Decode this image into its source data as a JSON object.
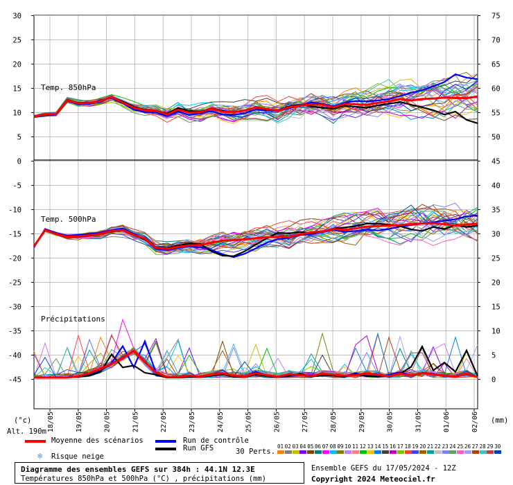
{
  "chart_data": {
    "type": "line",
    "x_dates": [
      "18/05",
      "19/05",
      "20/05",
      "21/05",
      "22/05",
      "23/05",
      "24/05",
      "25/05",
      "26/05",
      "27/05",
      "28/05",
      "29/05",
      "30/05",
      "31/05",
      "01/06",
      "02/06"
    ],
    "y_left_ticks": [
      "30",
      "25",
      "20",
      "15",
      "10",
      "5",
      "0",
      "-5",
      "-10",
      "-15",
      "-20",
      "-25",
      "-30",
      "-35",
      "-40",
      "-45"
    ],
    "y_right_upper_ticks": [
      "75",
      "70",
      "65",
      "60",
      "55",
      "50"
    ],
    "y_right_lower_ticks": [
      "45",
      "40",
      "35",
      "30",
      "25",
      "20",
      "15",
      "10",
      "5",
      "0"
    ],
    "left_unit": "(°c)",
    "right_unit": "(mm)",
    "altitude": "Alt. 190m",
    "panel_labels": {
      "t850": "Temp. 850hPa",
      "t500": "Temp. 500hPa",
      "precip": "Précipitations"
    },
    "series": [
      {
        "name": "Moyenne des scénarios",
        "color": "#ff0000",
        "t850": [
          9.2,
          9.6,
          9.7,
          12.6,
          11.9,
          12.0,
          12.4,
          13.2,
          12.1,
          11.0,
          10.5,
          10.4,
          9.6,
          10.6,
          10.0,
          10.1,
          10.8,
          10.2,
          10.1,
          10.4,
          11.1,
          10.7,
          10.4,
          11.1,
          11.4,
          11.7,
          11.6,
          11.1,
          11.8,
          11.7,
          11.6,
          12.0,
          12.3,
          12.8,
          12.5,
          12.8,
          12.9,
          13.1,
          13.0,
          13.0,
          13.3
        ],
        "t500": [
          -17.6,
          -14.2,
          -15.0,
          -15.6,
          -15.5,
          -15.3,
          -15.0,
          -14.4,
          -14.2,
          -15.2,
          -16.0,
          -17.9,
          -18.1,
          -17.7,
          -17.4,
          -17.3,
          -16.8,
          -16.4,
          -16.3,
          -16.1,
          -15.9,
          -15.7,
          -15.6,
          -15.7,
          -15.1,
          -14.7,
          -14.5,
          -14.0,
          -14.2,
          -13.9,
          -13.5,
          -13.4,
          -13.3,
          -13.2,
          -13.0,
          -12.9,
          -12.8,
          -13.0,
          -13.3,
          -13.1,
          -12.9
        ],
        "precip": [
          0,
          0,
          0,
          0,
          0.3,
          0.9,
          1.8,
          2.8,
          4.1,
          5.5,
          3.2,
          1.1,
          0.1,
          0.1,
          0.4,
          0.2,
          0.6,
          0.9,
          0.4,
          0.2,
          0.9,
          0.5,
          0.2,
          0.7,
          0.5,
          0.3,
          0.8,
          0.6,
          0.4,
          0.5,
          0.9,
          0.6,
          0.3,
          0.8,
          0.5,
          0.9,
          0.7,
          0.4,
          0.2,
          0.8,
          0.1
        ]
      },
      {
        "name": "Run de contrôle",
        "color": "#0000ff",
        "t850": [
          9.3,
          9.5,
          9.6,
          12.5,
          11.7,
          11.8,
          12.6,
          13.0,
          11.9,
          10.6,
          10.1,
          10.0,
          9.3,
          10.2,
          9.5,
          9.9,
          10.3,
          9.6,
          9.5,
          9.9,
          10.6,
          10.4,
          10.3,
          10.9,
          11.4,
          12.1,
          11.8,
          11.3,
          12.0,
          12.4,
          12.3,
          12.5,
          12.8,
          13.4,
          14.1,
          14.6,
          15.4,
          16.3,
          17.9,
          17.2,
          16.9
        ],
        "t500": [
          -17.8,
          -14.0,
          -14.8,
          -15.4,
          -15.2,
          -15.0,
          -14.8,
          -14.2,
          -13.9,
          -15.0,
          -16.1,
          -18.1,
          -18.4,
          -17.9,
          -17.6,
          -17.8,
          -18.3,
          -19.2,
          -19.8,
          -19.1,
          -18.0,
          -16.8,
          -16.1,
          -15.9,
          -15.2,
          -15.0,
          -14.6,
          -14.2,
          -14.6,
          -14.4,
          -14.1,
          -14.3,
          -14.0,
          -13.5,
          -13.2,
          -12.9,
          -12.6,
          -12.3,
          -12.0,
          -11.4,
          -11.2
        ],
        "precip": [
          0,
          0,
          0,
          0,
          0.2,
          0.6,
          1.4,
          3.0,
          6.5,
          2.1,
          7.5,
          1.0,
          0.1,
          0.0,
          0.1,
          0.3,
          0.5,
          0.8,
          0.2,
          0.1,
          1.2,
          0.4,
          0.1,
          0.3,
          0.6,
          0.4,
          0.8,
          0.5,
          0.3,
          0.9,
          0.4,
          0.2,
          0.6,
          1.1,
          0.5,
          0.9,
          0.8,
          0.4,
          0.3,
          0.6,
          0.2
        ]
      },
      {
        "name": "Run GFS",
        "color": "#000000",
        "t850": [
          9.1,
          9.5,
          9.7,
          12.7,
          12.0,
          12.1,
          12.3,
          13.2,
          12.3,
          11.2,
          10.6,
          10.4,
          9.8,
          10.9,
          10.3,
          10.2,
          10.9,
          10.4,
          10.0,
          10.5,
          11.0,
          10.6,
          10.5,
          11.3,
          11.6,
          11.3,
          11.0,
          10.8,
          11.4,
          11.2,
          11.0,
          11.5,
          11.8,
          12.2,
          11.6,
          11.1,
          10.5,
          9.6,
          10.2,
          8.5,
          7.8
        ],
        "t500": [
          -17.5,
          -14.3,
          -15.1,
          -15.7,
          -15.6,
          -15.4,
          -15.1,
          -14.5,
          -14.3,
          -15.3,
          -16.2,
          -17.8,
          -17.9,
          -17.4,
          -17.0,
          -17.1,
          -18.6,
          -19.5,
          -19.6,
          -18.6,
          -17.2,
          -15.9,
          -14.8,
          -14.9,
          -14.6,
          -14.9,
          -14.5,
          -13.9,
          -13.7,
          -13.4,
          -12.9,
          -12.9,
          -13.1,
          -13.4,
          -14.1,
          -14.4,
          -13.6,
          -14.0,
          -13.2,
          -13.6,
          -13.3
        ],
        "precip": [
          0,
          0,
          0,
          0,
          0.2,
          0.4,
          1.2,
          4.8,
          2.1,
          2.5,
          1.0,
          0.6,
          0.0,
          0.0,
          0.2,
          0.1,
          0.4,
          0.6,
          0.2,
          0.1,
          0.6,
          0.3,
          0.1,
          0.4,
          0.8,
          0.2,
          0.5,
          0.4,
          0.2,
          0.7,
          0.3,
          0.2,
          0.4,
          0.8,
          2.2,
          6.4,
          1.5,
          3.1,
          1.2,
          5.6,
          0.3
        ]
      }
    ],
    "perturbations_label": "30 Perts.",
    "perturbation_numbers": [
      "01",
      "02",
      "03",
      "04",
      "05",
      "06",
      "07",
      "08",
      "09",
      "10",
      "11",
      "12",
      "13",
      "14",
      "15",
      "16",
      "17",
      "18",
      "19",
      "20",
      "21",
      "22",
      "23",
      "24",
      "25",
      "26",
      "27",
      "28",
      "29",
      "30"
    ],
    "perturbation_colors": [
      "#ff8000",
      "#808080",
      "#c0c000",
      "#8000ff",
      "#804000",
      "#008080",
      "#ff00ff",
      "#00c0ff",
      "#808000",
      "#c080ff",
      "#ff8080",
      "#00c000",
      "#ffc000",
      "#0080ff",
      "#404040",
      "#c000c0",
      "#80c000",
      "#ff4040",
      "#4040ff",
      "#a06000",
      "#00a0a0",
      "#c0c0c0",
      "#8080ff",
      "#60a060",
      "#ff60c0",
      "#a0a0ff",
      "#b04000",
      "#40c0c0",
      "#c04040",
      "#0040c0"
    ],
    "snow_risk_label": "Risque neige"
  },
  "footer": {
    "title": "Diagramme des ensembles GEFS sur 384h : 44.1N 12.3E",
    "subtitle": "Températures 850hPa et 500hPa (°C) , précipitations (mm)",
    "run_info": "Ensemble GEFS du 17/05/2024 - 12Z",
    "copyright": "Copyright 2024 Meteociel.fr"
  }
}
